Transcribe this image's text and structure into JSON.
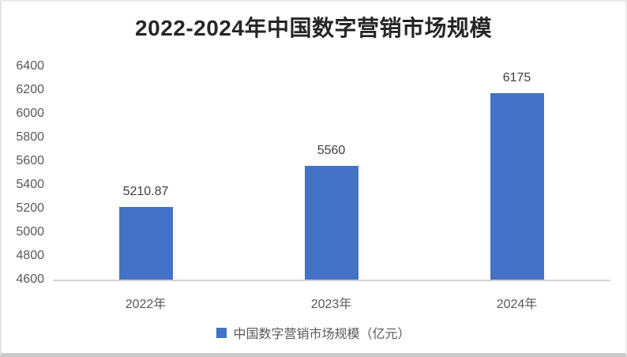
{
  "chart": {
    "frame_note": ""
  },
  "chart_data": {
    "type": "bar",
    "title": "2022-2024年中国数字营销市场规模",
    "categories": [
      "2022年",
      "2023年",
      "2024年"
    ],
    "series": [
      {
        "name": "中国数字营销市场规模（亿元）",
        "values": [
          5210.87,
          5560,
          6175
        ]
      }
    ],
    "data_labels_shown": true,
    "xlabel": "",
    "ylabel": "",
    "ylim": [
      4600,
      6400
    ],
    "ytick_step": 200,
    "yticks": [
      6400,
      6200,
      6000,
      5800,
      5600,
      5400,
      5200,
      5000,
      4800,
      4600
    ],
    "grid": false,
    "legend_position": "bottom",
    "colors": {
      "bar": "#4472c4",
      "axis_line": "#d2d0d0",
      "tick_label": "#595959",
      "data_label": "#404040",
      "title": "#262626"
    }
  }
}
